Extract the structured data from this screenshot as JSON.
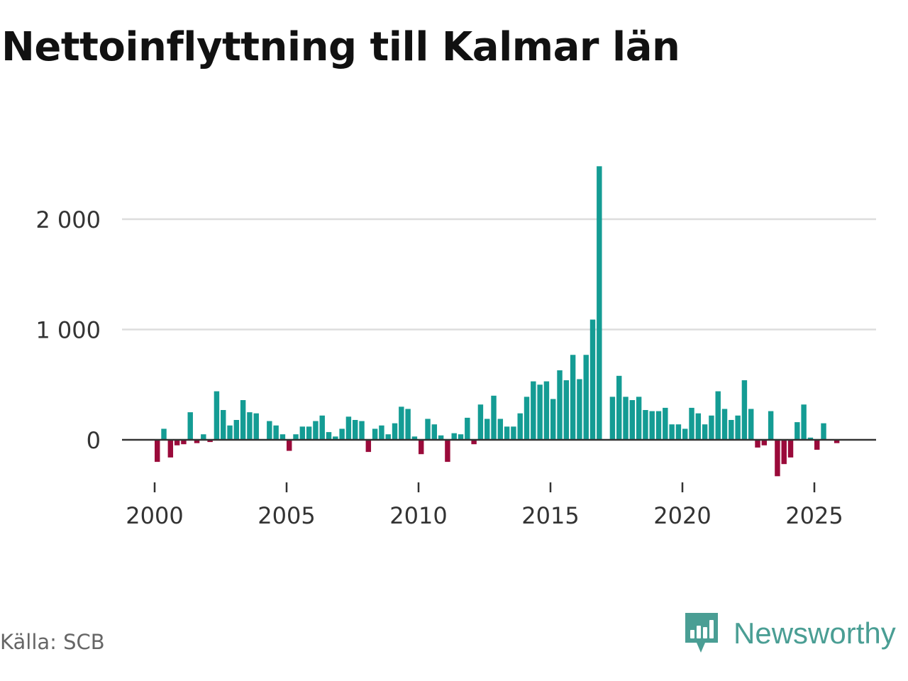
{
  "chart_data": {
    "type": "bar",
    "title": "Nettoinflyttning till Kalmar län",
    "xlabel": "",
    "ylabel": "",
    "frequency": "quarterly",
    "x_start": 2000.0,
    "x_step": 0.25,
    "x_ticks": [
      2000,
      2005,
      2010,
      2015,
      2020,
      2025
    ],
    "x_tick_labels": [
      "2000",
      "2005",
      "2010",
      "2015",
      "2020",
      "2025"
    ],
    "y_ticks": [
      0,
      1000,
      2000
    ],
    "y_tick_labels": [
      "0",
      "1 000",
      "2 000"
    ],
    "ylim": [
      -340,
      2500
    ],
    "xlim": [
      1999.0,
      2027.4
    ],
    "grid": true,
    "colors": {
      "positive": "#149c94",
      "negative": "#9a0a3a",
      "grid": "#dddddd",
      "zero_line": "#333333"
    },
    "values": [
      -200,
      100,
      -160,
      -50,
      -40,
      250,
      -30,
      50,
      -20,
      440,
      270,
      130,
      180,
      360,
      250,
      240,
      0,
      170,
      130,
      50,
      -100,
      50,
      120,
      120,
      170,
      220,
      70,
      30,
      100,
      210,
      180,
      170,
      -110,
      100,
      130,
      50,
      150,
      300,
      280,
      30,
      -130,
      190,
      140,
      40,
      -200,
      60,
      50,
      200,
      -40,
      320,
      190,
      400,
      190,
      120,
      120,
      240,
      390,
      530,
      500,
      530,
      370,
      630,
      540,
      770,
      550,
      770,
      1090,
      2480,
      0,
      390,
      580,
      390,
      360,
      390,
      270,
      260,
      260,
      290,
      140,
      140,
      100,
      290,
      240,
      140,
      220,
      440,
      280,
      180,
      220,
      540,
      280,
      -70,
      -50,
      260,
      -330,
      -220,
      -160,
      160,
      320,
      20,
      -90,
      150,
      0,
      -30
    ]
  },
  "footer": {
    "source": "Källa: SCB",
    "brand": "Newsworthy",
    "brand_color": "#4a9e94"
  }
}
